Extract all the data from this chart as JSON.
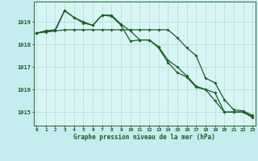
{
  "title": "Graphe pression niveau de la mer (hPa)",
  "background_color": "#c5ecee",
  "plot_bg_color": "#d8f4f4",
  "grid_color": "#b8dede",
  "line_color": "#1a5c28",
  "x_ticks": [
    0,
    1,
    2,
    3,
    4,
    5,
    6,
    7,
    8,
    9,
    10,
    11,
    12,
    13,
    14,
    15,
    16,
    17,
    18,
    19,
    20,
    21,
    22,
    23
  ],
  "y_ticks": [
    1015,
    1016,
    1017,
    1018,
    1019
  ],
  "ylim": [
    1014.4,
    1019.9
  ],
  "xlim": [
    -0.3,
    23.3
  ],
  "series1": [
    1018.5,
    1018.6,
    1018.65,
    1019.5,
    1019.2,
    1018.95,
    1018.85,
    1019.3,
    1019.25,
    1018.85,
    1018.15,
    1018.2,
    1018.2,
    1017.85,
    1017.2,
    1016.75,
    1016.55,
    1016.1,
    1016.0,
    1015.5,
    1015.0,
    1015.0,
    1015.0,
    1014.75
  ],
  "series2": [
    1018.5,
    1018.55,
    1018.6,
    1019.5,
    1019.2,
    1019.0,
    1018.85,
    1019.3,
    1019.3,
    1018.9,
    1018.6,
    1018.2,
    1018.2,
    1017.9,
    1017.3,
    1017.0,
    1016.6,
    1016.15,
    1016.0,
    1015.85,
    1015.0,
    1015.0,
    1015.0,
    1014.8
  ],
  "series3": [
    1018.5,
    1018.6,
    1018.6,
    1018.65,
    1018.65,
    1018.65,
    1018.65,
    1018.65,
    1018.65,
    1018.65,
    1018.65,
    1018.65,
    1018.65,
    1018.65,
    1018.65,
    1018.3,
    1017.85,
    1017.5,
    1016.5,
    1016.3,
    1015.55,
    1015.1,
    1015.05,
    1014.85
  ]
}
